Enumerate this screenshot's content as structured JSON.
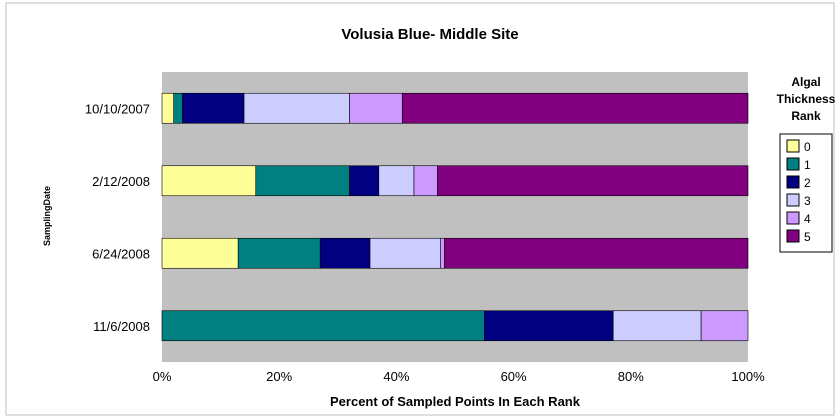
{
  "chart_data": {
    "type": "bar",
    "orientation": "horizontal",
    "stacked": true,
    "title": "Volusia Blue- Middle Site",
    "xlabel": "Percent of Sampled Points In Each Rank",
    "ylabel": "SamplingDate",
    "xlim": [
      0,
      100
    ],
    "x_ticks": [
      "0%",
      "20%",
      "40%",
      "60%",
      "80%",
      "100%"
    ],
    "categories": [
      "10/10/2007",
      "2/12/2008",
      "6/24/2008",
      "11/6/2008"
    ],
    "legend_title_lines": [
      "Algal",
      "Thickness",
      "Rank"
    ],
    "legend_position": "right",
    "grid": false,
    "plot_background": "#c0c0c0",
    "series": [
      {
        "name": "0",
        "color": "#ffff99",
        "values": [
          2,
          16,
          13,
          0
        ]
      },
      {
        "name": "1",
        "color": "#008080",
        "values": [
          1.5,
          16,
          14,
          55
        ]
      },
      {
        "name": "2",
        "color": "#000080",
        "values": [
          10.5,
          5,
          8.5,
          22
        ]
      },
      {
        "name": "3",
        "color": "#ccccff",
        "values": [
          18,
          6,
          12,
          15
        ]
      },
      {
        "name": "4",
        "color": "#cc99ff",
        "values": [
          9,
          4,
          0.7,
          8
        ]
      },
      {
        "name": "5",
        "color": "#800080",
        "values": [
          59,
          53,
          51.8,
          0
        ]
      }
    ]
  }
}
